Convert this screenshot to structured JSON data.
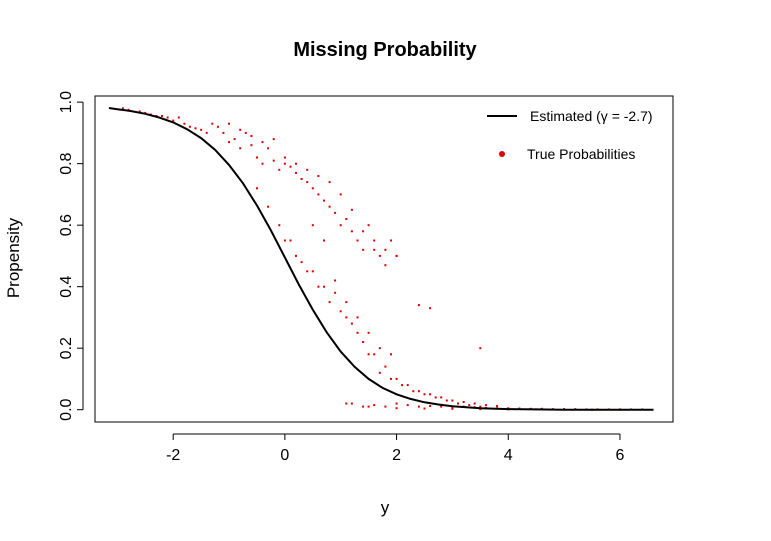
{
  "chart_data": {
    "type": "scatter",
    "title": "Missing Probability",
    "xlabel": "y",
    "ylabel": "Propensity",
    "xlim": [
      -3.4,
      6.95
    ],
    "ylim": [
      -0.04,
      1.02
    ],
    "xticks": [
      "-2",
      "0",
      "2",
      "4",
      "6"
    ],
    "yticks": [
      "0.0",
      "0.2",
      "0.4",
      "0.6",
      "0.8",
      "1.0"
    ],
    "grid": false,
    "legend_position": "top-right",
    "colors": {
      "line": "#000000",
      "points": "#dd0000",
      "frame": "#000000"
    },
    "series": [
      {
        "name": "Estimated (γ = -2.7)",
        "type": "line",
        "x": [
          -3.15,
          -3.0,
          -2.75,
          -2.5,
          -2.25,
          -2.0,
          -1.75,
          -1.5,
          -1.25,
          -1.0,
          -0.75,
          -0.5,
          -0.25,
          0.0,
          0.25,
          0.5,
          0.75,
          1.0,
          1.25,
          1.5,
          1.75,
          2.0,
          2.25,
          2.5,
          2.75,
          3.0,
          3.5,
          4.0,
          4.5,
          5.0,
          5.5,
          6.0,
          6.6
        ],
        "y": [
          0.981,
          0.977,
          0.971,
          0.962,
          0.95,
          0.934,
          0.912,
          0.883,
          0.845,
          0.796,
          0.736,
          0.664,
          0.583,
          0.495,
          0.407,
          0.325,
          0.251,
          0.189,
          0.139,
          0.1,
          0.071,
          0.05,
          0.035,
          0.024,
          0.017,
          0.011,
          0.005,
          0.002,
          0.001,
          0.0,
          0.0,
          0.0,
          0.0
        ]
      },
      {
        "name": "True Probabilities",
        "type": "scatter",
        "x": [
          -2.9,
          -2.8,
          -2.6,
          -2.5,
          -2.4,
          -2.3,
          -2.2,
          -2.1,
          -2.0,
          -1.9,
          -1.8,
          -1.7,
          -1.6,
          -1.5,
          -1.4,
          -1.3,
          -1.2,
          -1.1,
          -1.0,
          -0.9,
          -0.8,
          -0.7,
          -0.6,
          -0.5,
          -0.4,
          -0.3,
          -0.2,
          -0.1,
          0.0,
          0.1,
          0.2,
          0.3,
          0.4,
          0.5,
          0.6,
          0.7,
          0.8,
          0.9,
          1.0,
          1.1,
          1.2,
          1.3,
          1.4,
          1.5,
          1.6,
          1.7,
          1.8,
          1.9,
          2.0,
          -1.0,
          -0.8,
          -0.6,
          -0.4,
          -0.2,
          0.0,
          0.2,
          0.4,
          0.6,
          0.8,
          1.0,
          1.2,
          1.4,
          1.6,
          1.8,
          2.0,
          -0.5,
          -0.3,
          -0.1,
          0.1,
          0.3,
          0.5,
          0.7,
          0.9,
          1.1,
          1.3,
          1.5,
          1.7,
          1.9,
          0.0,
          0.2,
          0.4,
          0.6,
          0.8,
          1.0,
          1.2,
          1.4,
          1.6,
          1.8,
          2.0,
          2.2,
          2.4,
          2.6,
          2.8,
          3.0,
          3.2,
          3.4,
          3.6,
          3.8,
          0.5,
          0.7,
          0.9,
          1.1,
          1.3,
          1.5,
          1.7,
          1.9,
          2.1,
          2.3,
          2.5,
          2.7,
          2.9,
          3.1,
          3.3,
          3.5,
          1.2,
          1.4,
          1.6,
          1.8,
          2.0,
          2.2,
          2.4,
          2.6,
          2.8,
          3.0,
          3.2,
          3.4,
          3.6,
          3.8,
          4.0,
          4.2,
          4.4,
          4.6,
          4.8,
          5.0,
          5.2,
          5.4,
          5.6,
          5.8,
          6.0,
          6.2,
          6.4,
          1.1,
          1.5,
          2.0,
          2.5,
          3.0,
          3.5,
          4.0,
          4.5,
          5.0,
          5.5,
          6.0,
          2.4,
          2.6,
          3.5
        ],
        "y": [
          0.98,
          0.975,
          0.97,
          0.965,
          0.96,
          0.955,
          0.955,
          0.95,
          0.94,
          0.95,
          0.93,
          0.92,
          0.915,
          0.91,
          0.9,
          0.93,
          0.92,
          0.9,
          0.87,
          0.88,
          0.85,
          0.9,
          0.86,
          0.82,
          0.8,
          0.85,
          0.81,
          0.78,
          0.8,
          0.79,
          0.77,
          0.75,
          0.74,
          0.72,
          0.7,
          0.68,
          0.66,
          0.64,
          0.6,
          0.62,
          0.58,
          0.55,
          0.52,
          0.6,
          0.55,
          0.5,
          0.52,
          0.55,
          0.5,
          0.93,
          0.91,
          0.89,
          0.87,
          0.88,
          0.82,
          0.8,
          0.78,
          0.76,
          0.74,
          0.7,
          0.65,
          0.58,
          0.52,
          0.47,
          0.5,
          0.72,
          0.66,
          0.6,
          0.55,
          0.48,
          0.45,
          0.4,
          0.38,
          0.35,
          0.3,
          0.25,
          0.2,
          0.18,
          0.55,
          0.5,
          0.45,
          0.4,
          0.35,
          0.32,
          0.28,
          0.22,
          0.18,
          0.14,
          0.1,
          0.08,
          0.06,
          0.05,
          0.04,
          0.03,
          0.025,
          0.02,
          0.015,
          0.012,
          0.6,
          0.55,
          0.42,
          0.3,
          0.25,
          0.18,
          0.12,
          0.1,
          0.08,
          0.06,
          0.05,
          0.04,
          0.03,
          0.02,
          0.015,
          0.01,
          0.02,
          0.01,
          0.015,
          0.01,
          0.02,
          0.015,
          0.01,
          0.012,
          0.01,
          0.008,
          0.01,
          0.008,
          0.006,
          0.005,
          0.005,
          0.004,
          0.003,
          0.003,
          0.002,
          0.002,
          0.002,
          0.001,
          0.001,
          0.001,
          0.001,
          0.001,
          0.001,
          0.02,
          0.01,
          0.005,
          0.004,
          0.003,
          0.002,
          0.001,
          0.001,
          0.001,
          0.0,
          0.0,
          0.34,
          0.33,
          0.2
        ]
      }
    ]
  }
}
